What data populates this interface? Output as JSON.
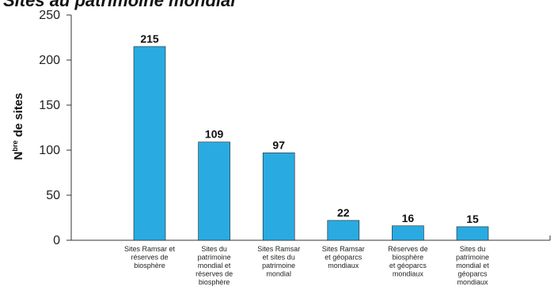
{
  "chart_data": {
    "type": "bar",
    "title_fragment": "Sites au patrimoine mondial",
    "ylabel_main": "N",
    "ylabel_sup": "bre",
    "ylabel_rest": " de sites",
    "ylim": [
      0,
      250
    ],
    "yticks": [
      "0",
      "50",
      "100",
      "150",
      "200",
      "250"
    ],
    "categories": [
      [
        "Sites Ramsar et",
        "réserves de",
        "biosphère"
      ],
      [
        "Sites du",
        "patrimoine",
        "mondial et",
        "réserves de",
        "biosphère"
      ],
      [
        "Sites Ramsar",
        "et sites du",
        "patrimoine",
        "mondial"
      ],
      [
        "Sites Ramsar",
        "et géoparcs",
        "mondiaux"
      ],
      [
        "Réserves de",
        "biosphère",
        "et géoparcs",
        "mondiaux"
      ],
      [
        "Sites du",
        "patrimoine",
        "mondial et",
        "géoparcs",
        "mondiaux"
      ]
    ],
    "values": [
      215,
      109,
      97,
      22,
      16,
      15
    ],
    "value_labels": [
      "215",
      "109",
      "97",
      "22",
      "16",
      "15"
    ],
    "bar_color": "#29abe2",
    "grid": false
  }
}
